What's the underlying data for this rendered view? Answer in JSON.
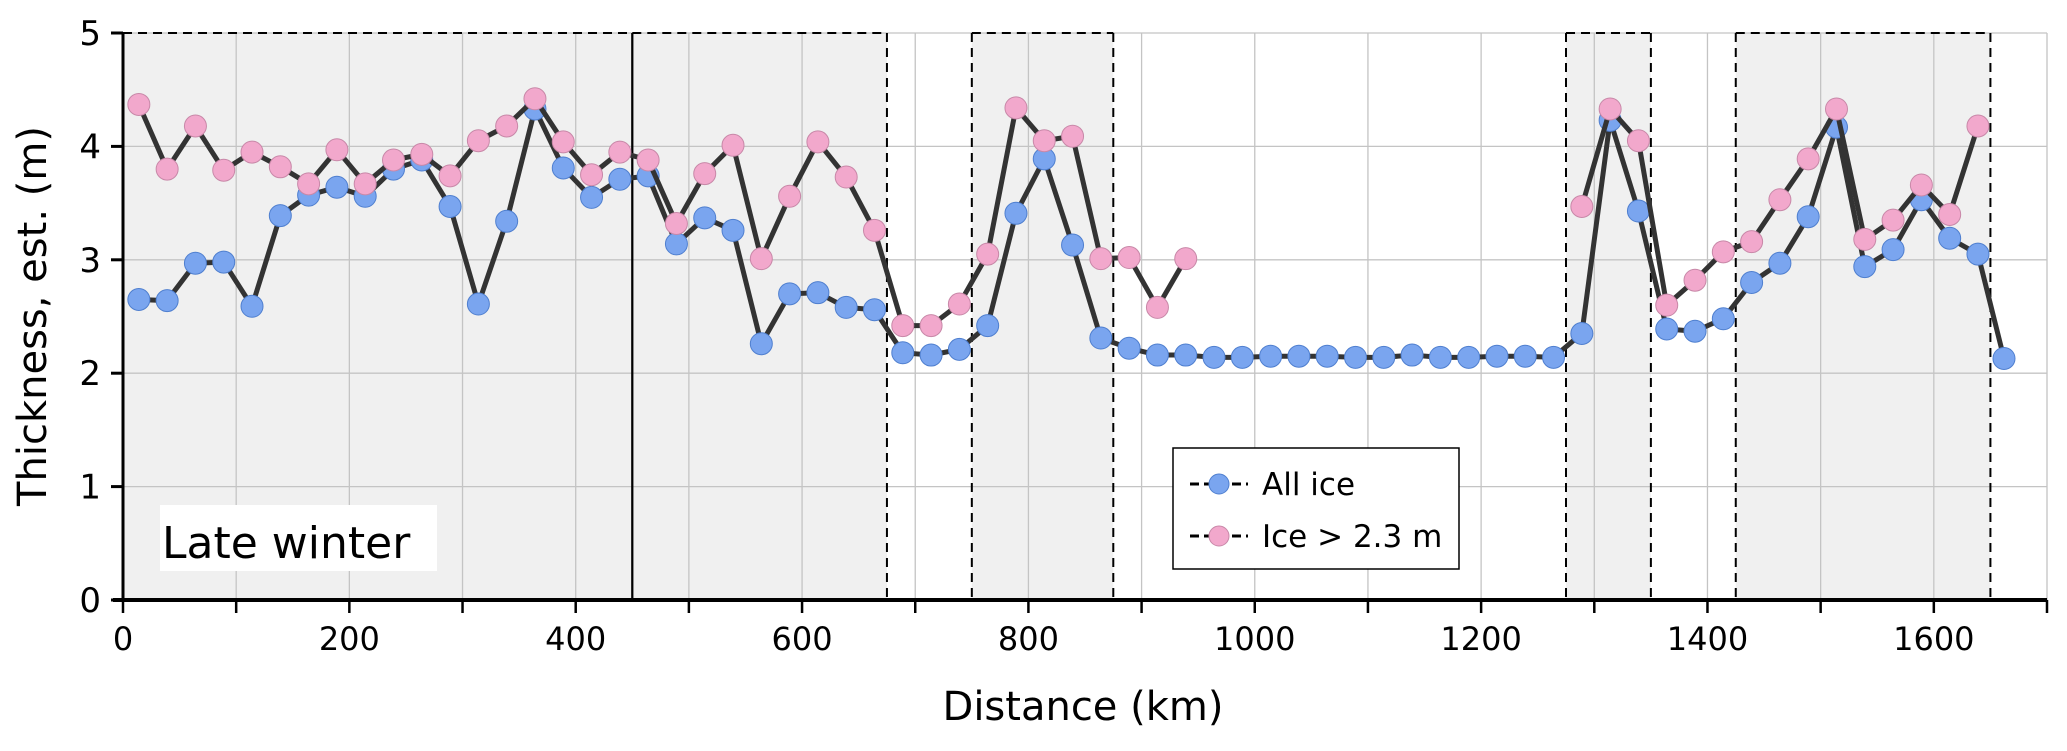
{
  "chart_data": {
    "type": "line",
    "title": "",
    "annotation": "Late winter",
    "xlabel": "Distance (km)",
    "ylabel": "Thickness, est. (m)",
    "xlim": [
      0,
      1700
    ],
    "ylim": [
      0,
      5
    ],
    "x_ticks": [
      0,
      200,
      400,
      600,
      800,
      1000,
      1200,
      1400,
      1600
    ],
    "y_ticks": [
      0,
      1,
      2,
      3,
      4,
      5
    ],
    "grid": true,
    "legend_position": "bottom-center",
    "x_start": 14,
    "x_step": 25,
    "shaded_regions_km": [
      [
        0,
        450
      ],
      [
        450,
        675
      ],
      [
        750,
        875
      ],
      [
        1275,
        1350
      ],
      [
        1425,
        1650
      ]
    ],
    "series": [
      {
        "name": "All ice",
        "color": "#7aa5ef",
        "values": [
          2.65,
          2.64,
          2.97,
          2.98,
          2.59,
          3.39,
          3.57,
          3.64,
          3.56,
          3.8,
          3.88,
          3.47,
          2.61,
          3.34,
          4.33,
          3.81,
          3.55,
          3.71,
          3.74,
          3.14,
          3.37,
          3.26,
          2.26,
          2.7,
          2.71,
          2.58,
          2.56,
          2.18,
          2.16,
          2.21,
          2.42,
          3.41,
          3.89,
          3.13,
          2.31,
          2.22,
          2.16,
          2.16,
          2.14,
          2.14,
          2.15,
          2.15,
          2.15,
          2.14,
          2.14,
          2.16,
          2.14,
          2.14,
          2.15,
          2.15,
          2.14,
          2.35,
          4.23,
          3.43,
          2.39,
          2.37,
          2.48,
          2.8,
          2.97,
          3.38,
          4.17,
          2.94,
          3.09,
          3.53,
          3.19,
          3.05,
          2.13
        ]
      },
      {
        "name": "Ice > 2.3 m",
        "color": "#f2a8cc",
        "values": [
          4.37,
          3.8,
          4.18,
          3.79,
          3.95,
          3.82,
          3.67,
          3.97,
          3.67,
          3.88,
          3.93,
          3.74,
          4.05,
          4.18,
          4.42,
          4.04,
          3.75,
          3.95,
          3.88,
          3.32,
          3.76,
          4.01,
          3.01,
          3.56,
          4.04,
          3.73,
          3.26,
          2.42,
          2.42,
          2.61,
          3.05,
          4.34,
          4.05,
          4.09,
          3.01,
          3.02,
          2.58,
          3.01,
          null,
          null,
          null,
          null,
          null,
          null,
          null,
          null,
          null,
          null,
          null,
          null,
          null,
          3.47,
          4.33,
          4.05,
          2.6,
          2.82,
          3.07,
          3.16,
          3.53,
          3.89,
          4.33,
          3.18,
          3.35,
          3.66,
          3.4,
          4.18,
          null
        ]
      }
    ]
  }
}
